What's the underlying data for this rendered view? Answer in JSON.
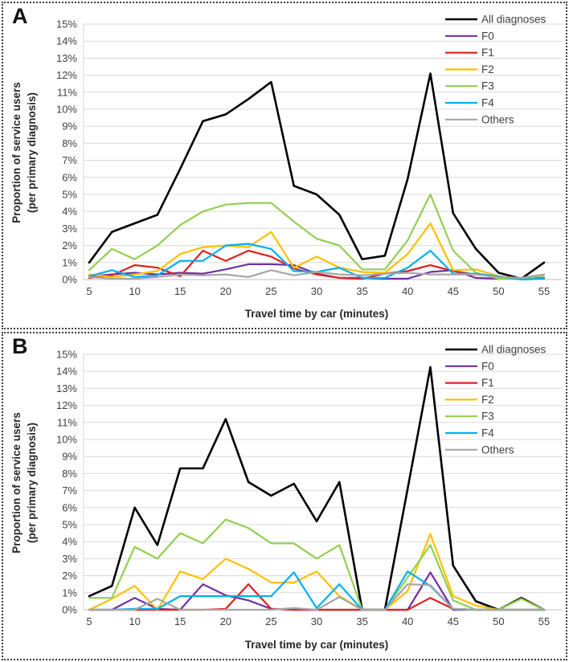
{
  "figure": {
    "panel_count": 2,
    "x_axis_title": "Travel time by car (minutes)",
    "y_axis_title_line1": "Proportion of service users",
    "y_axis_title_line2": "(per primary diagnosis)"
  },
  "chart_data": [
    {
      "type": "line",
      "panel": "A",
      "xlabel": "Travel time by car (minutes)",
      "ylabel": "Proportion of service users (per primary diagnosis)",
      "ylabel_line1": "Proportion of service users",
      "ylabel_line2": "(per primary diagnosis)",
      "x": [
        5,
        7.5,
        10,
        12.5,
        15,
        17.5,
        20,
        22.5,
        25,
        27.5,
        30,
        32.5,
        35,
        37.5,
        40,
        42.5,
        45,
        47.5,
        50,
        52.5,
        55
      ],
      "xticks": [
        5,
        10,
        15,
        20,
        25,
        30,
        35,
        40,
        45,
        50,
        55
      ],
      "ylim": [
        0,
        15
      ],
      "ytick_step": 1,
      "ytick_suffix": "%",
      "grid": true,
      "legend_position": "top-right",
      "series": [
        {
          "name": "All diagnoses",
          "color": "#000000",
          "width": 2.6,
          "values": [
            1.0,
            2.8,
            3.3,
            3.8,
            6.5,
            9.3,
            9.7,
            10.6,
            11.6,
            5.5,
            5.0,
            3.8,
            1.2,
            1.4,
            5.9,
            12.1,
            3.9,
            1.8,
            0.4,
            0.05,
            1.0
          ]
        },
        {
          "name": "F0",
          "color": "#7030a0",
          "width": 2.2,
          "values": [
            0.2,
            0.3,
            0.4,
            0.3,
            0.4,
            0.35,
            0.6,
            0.9,
            0.9,
            0.85,
            0.35,
            0.1,
            0.1,
            0.05,
            0.05,
            0.45,
            0.55,
            0.1,
            0.05,
            0.05,
            0.1
          ]
        },
        {
          "name": "F1",
          "color": "#e02020",
          "width": 2.2,
          "values": [
            0.1,
            0.25,
            0.85,
            0.7,
            0.2,
            1.7,
            1.1,
            1.7,
            1.35,
            0.65,
            0.3,
            0.1,
            0.05,
            0.35,
            0.5,
            0.85,
            0.5,
            0.3,
            0.2,
            0.05,
            0.1
          ]
        },
        {
          "name": "F2",
          "color": "#ffc000",
          "width": 2.2,
          "values": [
            0.3,
            0.15,
            0.3,
            0.5,
            1.5,
            1.9,
            2.0,
            1.9,
            2.8,
            0.7,
            1.35,
            0.7,
            0.45,
            0.4,
            1.5,
            3.3,
            0.55,
            0.6,
            0.2,
            0.05,
            0.05
          ]
        },
        {
          "name": "F3",
          "color": "#92d050",
          "width": 2.2,
          "values": [
            0.55,
            1.8,
            1.2,
            2.0,
            3.2,
            4.0,
            4.4,
            4.5,
            4.5,
            3.4,
            2.4,
            2.0,
            0.6,
            0.6,
            2.3,
            5.0,
            1.7,
            0.4,
            0.05,
            0.05,
            0.25
          ]
        },
        {
          "name": "F4",
          "color": "#00b0f0",
          "width": 2.2,
          "values": [
            0.2,
            0.55,
            0.15,
            0.25,
            1.1,
            1.1,
            2.0,
            2.1,
            1.8,
            0.5,
            0.45,
            0.7,
            0.1,
            0.1,
            0.7,
            1.7,
            0.35,
            0.35,
            0.2,
            0.0,
            0.05
          ]
        },
        {
          "name": "Others",
          "color": "#a6a6a6",
          "width": 2.2,
          "values": [
            0.15,
            0.05,
            0.05,
            0.15,
            0.3,
            0.25,
            0.3,
            0.15,
            0.55,
            0.25,
            0.45,
            0.3,
            0.25,
            0.35,
            0.4,
            0.3,
            0.3,
            0.3,
            0.15,
            0.1,
            0.3
          ]
        }
      ]
    },
    {
      "type": "line",
      "panel": "B",
      "xlabel": "Travel time by car (minutes)",
      "ylabel": "Proportion of service users (per primary diagnosis)",
      "ylabel_line1": "Proportion of service users",
      "ylabel_line2": "(per primary diagnosis)",
      "x": [
        5,
        7.5,
        10,
        12.5,
        15,
        17.5,
        20,
        22.5,
        25,
        27.5,
        30,
        32.5,
        35,
        37.5,
        40,
        42.5,
        45,
        47.5,
        50,
        52.5,
        55
      ],
      "xticks": [
        5,
        10,
        15,
        20,
        25,
        30,
        35,
        40,
        45,
        50,
        55
      ],
      "ylim": [
        0,
        15
      ],
      "ytick_step": 1,
      "ytick_suffix": "%",
      "grid": true,
      "legend_position": "top-right",
      "series": [
        {
          "name": "All diagnoses",
          "color": "#000000",
          "width": 2.6,
          "values": [
            0.8,
            1.4,
            6.0,
            3.8,
            8.3,
            8.3,
            11.2,
            7.5,
            6.7,
            7.4,
            5.2,
            7.5,
            0.0,
            0.0,
            7.1,
            14.25,
            2.6,
            0.5,
            0.0,
            0.7,
            0.0
          ]
        },
        {
          "name": "F0",
          "color": "#7030a0",
          "width": 2.2,
          "values": [
            0.0,
            0.0,
            0.7,
            0.05,
            0.0,
            1.5,
            0.85,
            0.55,
            0.05,
            0.0,
            0.0,
            0.0,
            0.0,
            0.0,
            0.0,
            2.2,
            0.0,
            0.0,
            0.0,
            0.0,
            0.0
          ]
        },
        {
          "name": "F1",
          "color": "#e02020",
          "width": 2.2,
          "values": [
            0.0,
            0.0,
            0.0,
            0.0,
            0.0,
            0.0,
            0.05,
            1.5,
            0.05,
            0.0,
            0.0,
            0.0,
            0.0,
            0.0,
            0.0,
            0.7,
            0.05,
            0.0,
            0.0,
            0.0,
            0.0
          ]
        },
        {
          "name": "F2",
          "color": "#ffc000",
          "width": 2.2,
          "values": [
            0.0,
            0.65,
            1.4,
            0.0,
            2.25,
            1.8,
            3.0,
            2.4,
            1.6,
            1.6,
            2.25,
            0.8,
            0.0,
            0.0,
            1.1,
            4.45,
            0.8,
            0.25,
            0.0,
            0.0,
            0.0
          ]
        },
        {
          "name": "F3",
          "color": "#92d050",
          "width": 2.2,
          "values": [
            0.7,
            0.7,
            3.7,
            3.0,
            4.5,
            3.9,
            5.3,
            4.8,
            3.9,
            3.9,
            3.0,
            3.8,
            0.0,
            0.0,
            1.9,
            3.8,
            0.55,
            0.0,
            0.0,
            0.65,
            0.0
          ]
        },
        {
          "name": "F4",
          "color": "#00b0f0",
          "width": 2.2,
          "values": [
            0.0,
            0.0,
            0.05,
            0.05,
            0.8,
            0.8,
            0.8,
            0.8,
            0.8,
            2.2,
            0.1,
            1.5,
            0.0,
            0.0,
            2.25,
            1.4,
            0.05,
            0.0,
            0.0,
            0.0,
            0.0
          ]
        },
        {
          "name": "Others",
          "color": "#a6a6a6",
          "width": 2.2,
          "values": [
            0.0,
            0.0,
            0.0,
            0.65,
            0.0,
            0.0,
            0.0,
            0.0,
            0.0,
            0.1,
            0.0,
            0.75,
            0.0,
            0.0,
            1.5,
            1.45,
            0.05,
            0.0,
            0.0,
            0.0,
            0.0
          ]
        }
      ]
    }
  ],
  "style": {
    "gridline_color": "#d9d9d9",
    "axis_line_color": "#bfbfbf",
    "tick_label_color": "#404040",
    "title_color": "#262626"
  }
}
